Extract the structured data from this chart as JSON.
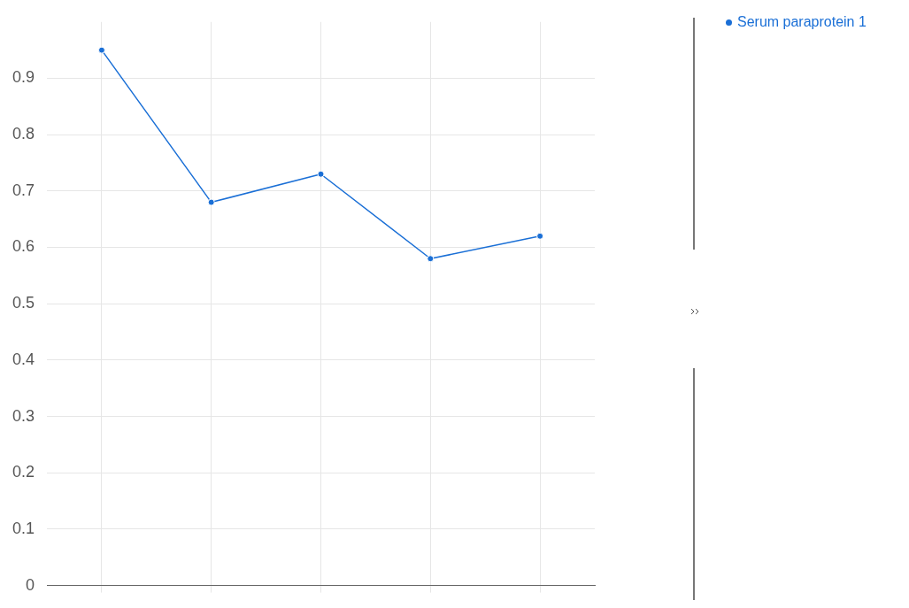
{
  "chart_data": {
    "type": "line",
    "categories": [
      null,
      null,
      null,
      null,
      null
    ],
    "series": [
      {
        "name": "Serum paraprotein 1",
        "color": "#1a6fd6",
        "values": [
          0.95,
          0.68,
          0.73,
          0.58,
          0.62
        ]
      }
    ],
    "ylim": [
      0,
      1
    ],
    "yticks": [
      0,
      0.1,
      0.2,
      0.3,
      0.4,
      0.5,
      0.6,
      0.7,
      0.8,
      0.9
    ],
    "grid": true,
    "legend": "top right",
    "marker": "circle",
    "line_style": "solid"
  }
}
